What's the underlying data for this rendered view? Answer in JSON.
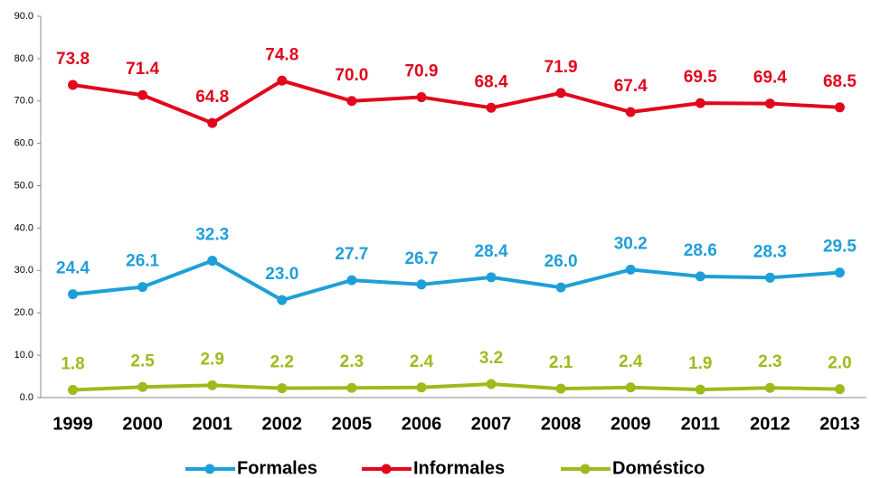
{
  "chart_data": {
    "type": "line",
    "categories": [
      "1999",
      "2000",
      "2001",
      "2002",
      "2005",
      "2006",
      "2007",
      "2008",
      "2009",
      "2011",
      "2012",
      "2013"
    ],
    "series": [
      {
        "name": "Formales",
        "color": "#1e9fd8",
        "values": [
          24.4,
          26.1,
          32.3,
          23.0,
          27.7,
          26.7,
          28.4,
          26.0,
          30.2,
          28.6,
          28.3,
          29.5
        ],
        "value_labels": [
          "24.4",
          "26.1",
          "32.3",
          "23.0",
          "27.7",
          "26.7",
          "28.4",
          "26.0",
          "30.2",
          "28.6",
          "28.3",
          "29.5"
        ]
      },
      {
        "name": "Informales",
        "color": "#e2071c",
        "values": [
          73.8,
          71.4,
          64.8,
          74.8,
          70.0,
          70.9,
          68.4,
          71.9,
          67.4,
          69.5,
          69.4,
          68.5
        ],
        "value_labels": [
          "73.8",
          "71.4",
          "64.8",
          "74.8",
          "70.0",
          "70.9",
          "68.4",
          "71.9",
          "67.4",
          "69.5",
          "69.4",
          "68.5"
        ]
      },
      {
        "name": "Doméstico",
        "color": "#9cbb1c",
        "values": [
          1.8,
          2.5,
          2.9,
          2.2,
          2.3,
          2.4,
          3.2,
          2.1,
          2.4,
          1.9,
          2.3,
          2.0
        ],
        "value_labels": [
          "1.8",
          "2.5",
          "2.9",
          "2.2",
          "2.3",
          "2.4",
          "3.2",
          "2.1",
          "2.4",
          "1.9",
          "2.3",
          "2.0"
        ]
      }
    ],
    "ylim": [
      0,
      90
    ],
    "yticks": [
      {
        "value": 0,
        "label": "0.0"
      },
      {
        "value": 10,
        "label": "10.0"
      },
      {
        "value": 20,
        "label": "20.0"
      },
      {
        "value": 30,
        "label": "30.0"
      },
      {
        "value": 40,
        "label": "40.0"
      },
      {
        "value": 50,
        "label": "50.0"
      },
      {
        "value": 60,
        "label": "60.0"
      },
      {
        "value": 70,
        "label": "70.0"
      },
      {
        "value": 80,
        "label": "80.0"
      },
      {
        "value": 90,
        "label": "90.0"
      }
    ],
    "grid": false,
    "legend": "bottom"
  }
}
